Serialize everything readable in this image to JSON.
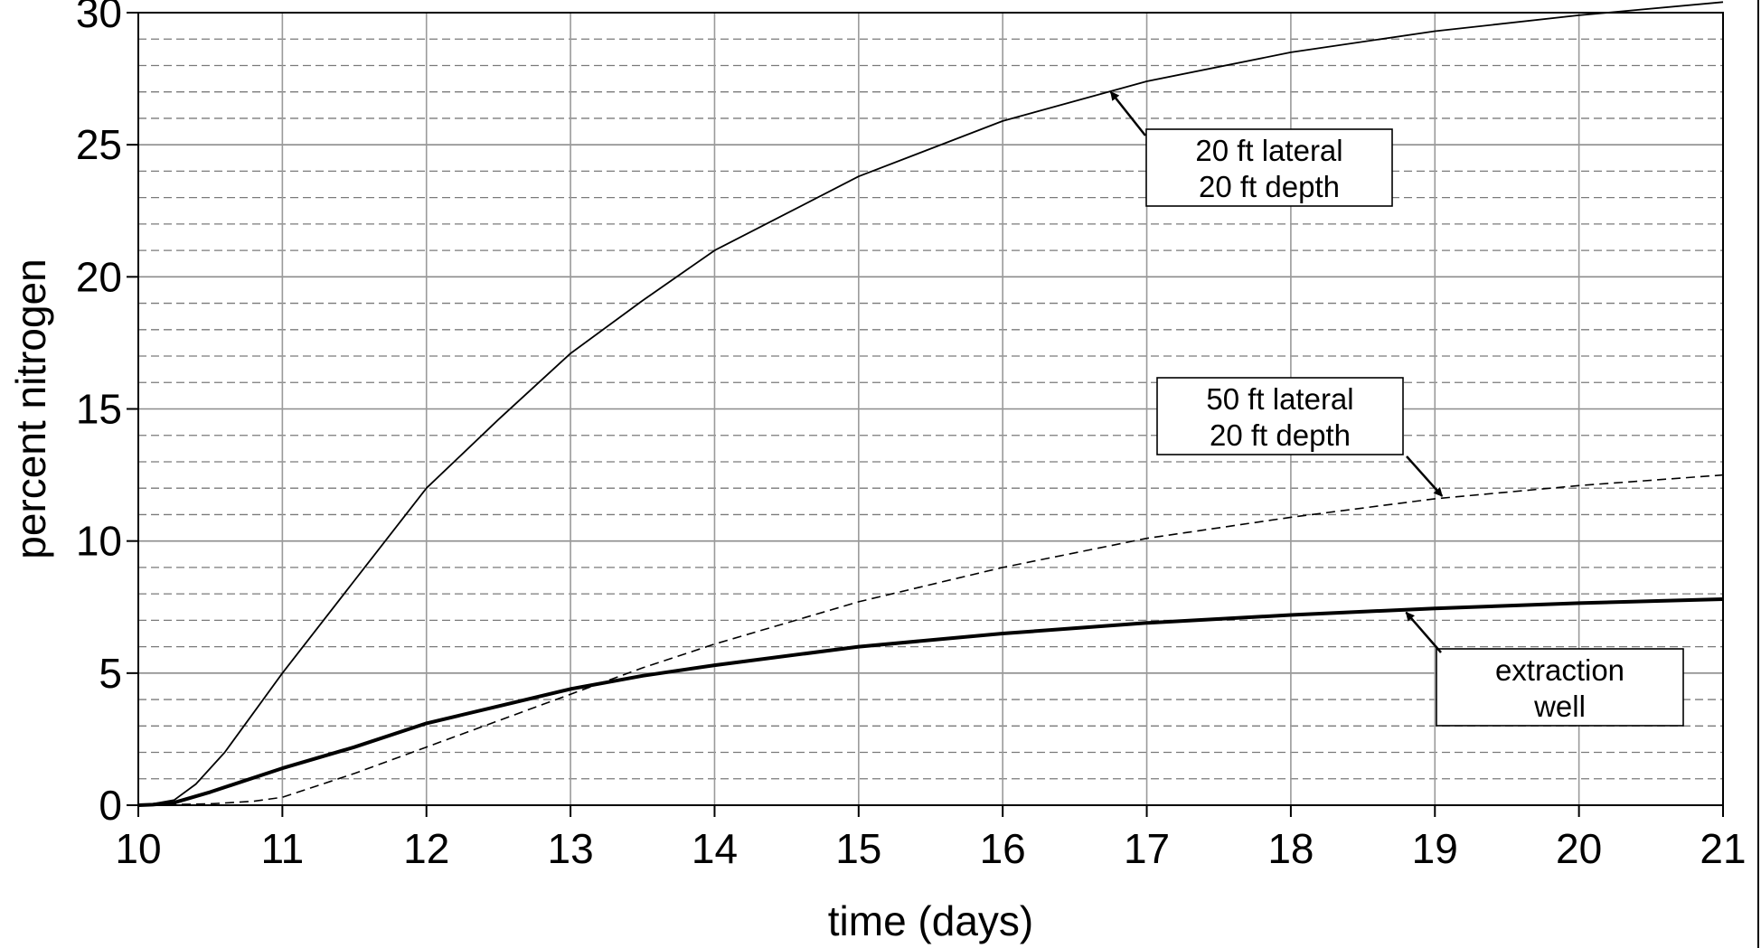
{
  "chart_data": {
    "type": "line",
    "title": "",
    "xlabel": "time (days)",
    "ylabel": "percent nitrogen",
    "xlim": [
      10,
      21
    ],
    "ylim": [
      0,
      30
    ],
    "x_ticks": [
      10,
      11,
      12,
      13,
      14,
      15,
      16,
      17,
      18,
      19,
      20,
      21
    ],
    "y_ticks": [
      0,
      5,
      10,
      15,
      20,
      25,
      30
    ],
    "minor_y_step": 1,
    "grid": true,
    "series": [
      {
        "style": "thin-solid",
        "color": "#000000",
        "points": [
          [
            10,
            0
          ],
          [
            10.1,
            0.05
          ],
          [
            10.25,
            0.2
          ],
          [
            10.4,
            0.8
          ],
          [
            10.6,
            2.0
          ],
          [
            10.8,
            3.5
          ],
          [
            11,
            5.0
          ],
          [
            11.5,
            8.5
          ],
          [
            12,
            12.0
          ],
          [
            12.5,
            14.6
          ],
          [
            13,
            17.1
          ],
          [
            13.5,
            19.1
          ],
          [
            14,
            21.0
          ],
          [
            14.5,
            22.4
          ],
          [
            15,
            23.8
          ],
          [
            16,
            25.9
          ],
          [
            17,
            27.4
          ],
          [
            18,
            28.5
          ],
          [
            19,
            29.3
          ],
          [
            20,
            29.9
          ],
          [
            21,
            30.4
          ]
        ]
      },
      {
        "style": "dashed",
        "color": "#000000",
        "points": [
          [
            10,
            0
          ],
          [
            10.5,
            0.05
          ],
          [
            10.8,
            0.15
          ],
          [
            11,
            0.3
          ],
          [
            11.5,
            1.2
          ],
          [
            12,
            2.2
          ],
          [
            12.5,
            3.2
          ],
          [
            13,
            4.2
          ],
          [
            13.5,
            5.2
          ],
          [
            14,
            6.1
          ],
          [
            15,
            7.7
          ],
          [
            16,
            9.0
          ],
          [
            17,
            10.1
          ],
          [
            18,
            10.9
          ],
          [
            19,
            11.6
          ],
          [
            20,
            12.1
          ],
          [
            21,
            12.5
          ]
        ]
      },
      {
        "style": "thick-solid",
        "color": "#000000",
        "points": [
          [
            10,
            0
          ],
          [
            10.1,
            0.02
          ],
          [
            10.25,
            0.1
          ],
          [
            10.5,
            0.5
          ],
          [
            11,
            1.4
          ],
          [
            11.5,
            2.2
          ],
          [
            12,
            3.1
          ],
          [
            12.5,
            3.75
          ],
          [
            13,
            4.4
          ],
          [
            13.5,
            4.9
          ],
          [
            14,
            5.3
          ],
          [
            15,
            6.0
          ],
          [
            16,
            6.5
          ],
          [
            17,
            6.9
          ],
          [
            18,
            7.2
          ],
          [
            19,
            7.45
          ],
          [
            20,
            7.65
          ],
          [
            21,
            7.8
          ]
        ]
      }
    ],
    "annotations": [
      {
        "lines": [
          "20 ft lateral",
          "20 ft depth"
        ],
        "arrow_to": [
          16.75,
          27.0
        ],
        "series_index": 0
      },
      {
        "lines": [
          "50 ft lateral",
          "20 ft depth"
        ],
        "arrow_to": [
          19.05,
          11.7
        ],
        "series_index": 1
      },
      {
        "lines": [
          "extraction",
          "well"
        ],
        "arrow_to": [
          18.8,
          7.3
        ],
        "series_index": 2
      }
    ]
  }
}
